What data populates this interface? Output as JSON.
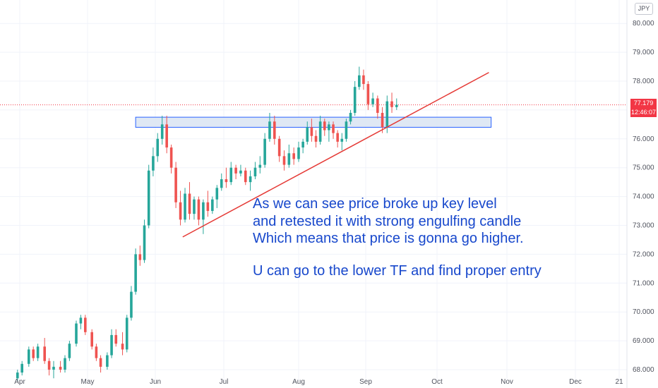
{
  "currency_label": "JPY",
  "price_tag": {
    "price": "77.179",
    "countdown": "12:46:07"
  },
  "annotation": {
    "line1": "As we can see price broke up key level",
    "line2": "and retested it with strong engulfing candle",
    "line3": "Which means that price is gonna go higher.",
    "line4": "U can go to the lower TF and find proper entry"
  },
  "colors": {
    "up": "#26a69a",
    "down": "#ef5350",
    "trendline": "#e53935",
    "zone_fill": "#dbe6f3",
    "zone_stroke": "#2962ff",
    "text": "#1848cc"
  },
  "chart_data": {
    "type": "candlestick",
    "x_ticks": [
      "Apr",
      "May",
      "Jun",
      "Jul",
      "Aug",
      "Sep",
      "Oct",
      "Nov",
      "Dec",
      "21"
    ],
    "y_ticks": [
      "68.000",
      "69.000",
      "70.000",
      "71.000",
      "72.000",
      "73.000",
      "74.000",
      "75.000",
      "76.000",
      "77.000",
      "78.000",
      "79.000",
      "80.000"
    ],
    "ylim": [
      67.9,
      80.3
    ],
    "zone": {
      "low": 76.4,
      "high": 76.75,
      "start": "2020-05-23",
      "end": "2020-10-25"
    },
    "trendline": {
      "start": [
        "2020-06-13",
        72.6
      ],
      "end": [
        "2020-10-24",
        78.3
      ]
    },
    "current_price_line": 77.179,
    "candles": [
      [
        "2020-03-31",
        67.7,
        68.0,
        67.6,
        67.9
      ],
      [
        "2020-04-02",
        67.9,
        68.3,
        67.8,
        68.2
      ],
      [
        "2020-04-05",
        68.2,
        68.8,
        68.1,
        68.7
      ],
      [
        "2020-04-07",
        68.7,
        68.8,
        68.3,
        68.4
      ],
      [
        "2020-04-09",
        68.4,
        68.9,
        68.3,
        68.8
      ],
      [
        "2020-04-12",
        68.8,
        69.1,
        68.2,
        68.3
      ],
      [
        "2020-04-14",
        68.3,
        68.4,
        67.8,
        68.0
      ],
      [
        "2020-04-16",
        68.0,
        68.3,
        67.7,
        68.1
      ],
      [
        "2020-04-19",
        68.1,
        68.3,
        67.9,
        68.0
      ],
      [
        "2020-04-21",
        68.0,
        68.5,
        67.9,
        68.4
      ],
      [
        "2020-04-23",
        68.4,
        69.0,
        68.3,
        68.9
      ],
      [
        "2020-04-26",
        68.9,
        69.7,
        68.8,
        69.6
      ],
      [
        "2020-04-28",
        69.6,
        69.9,
        69.4,
        69.8
      ],
      [
        "2020-04-30",
        69.8,
        69.9,
        69.2,
        69.3
      ],
      [
        "2020-05-03",
        69.3,
        69.4,
        68.7,
        68.8
      ],
      [
        "2020-05-05",
        68.8,
        68.9,
        68.3,
        68.4
      ],
      [
        "2020-05-07",
        68.4,
        68.5,
        67.9,
        68.1
      ],
      [
        "2020-05-10",
        68.1,
        68.6,
        68.0,
        68.5
      ],
      [
        "2020-05-12",
        68.5,
        69.4,
        68.4,
        69.2
      ],
      [
        "2020-05-14",
        69.2,
        69.4,
        68.8,
        68.9
      ],
      [
        "2020-05-17",
        68.9,
        69.3,
        68.5,
        68.7
      ],
      [
        "2020-05-19",
        68.7,
        69.9,
        68.6,
        69.8
      ],
      [
        "2020-05-21",
        69.8,
        70.9,
        69.7,
        70.7
      ],
      [
        "2020-05-23",
        70.7,
        72.2,
        70.6,
        72.0
      ],
      [
        "2020-05-25",
        72.0,
        72.3,
        71.6,
        71.8
      ],
      [
        "2020-05-27",
        71.8,
        73.2,
        71.7,
        73.0
      ],
      [
        "2020-05-29",
        73.0,
        75.1,
        72.9,
        74.9
      ],
      [
        "2020-05-31",
        74.9,
        75.7,
        74.7,
        75.4
      ],
      [
        "2020-06-02",
        75.4,
        76.2,
        75.2,
        76.0
      ],
      [
        "2020-06-04",
        76.0,
        76.8,
        75.8,
        76.5
      ],
      [
        "2020-06-06",
        76.5,
        76.8,
        75.5,
        75.7
      ],
      [
        "2020-06-08",
        75.7,
        75.8,
        74.8,
        75.0
      ],
      [
        "2020-06-10",
        75.0,
        75.2,
        73.6,
        73.8
      ],
      [
        "2020-06-12",
        73.8,
        74.2,
        73.0,
        73.2
      ],
      [
        "2020-06-14",
        73.2,
        74.3,
        73.1,
        74.1
      ],
      [
        "2020-06-16",
        74.1,
        74.5,
        73.2,
        73.4
      ],
      [
        "2020-06-18",
        73.4,
        74.0,
        73.2,
        73.9
      ],
      [
        "2020-06-20",
        73.9,
        74.0,
        73.0,
        73.2
      ],
      [
        "2020-06-22",
        73.2,
        73.9,
        72.7,
        73.8
      ],
      [
        "2020-06-24",
        73.8,
        74.2,
        73.3,
        73.5
      ],
      [
        "2020-06-26",
        73.5,
        74.0,
        73.4,
        73.9
      ],
      [
        "2020-06-28",
        73.9,
        74.4,
        73.6,
        74.3
      ],
      [
        "2020-06-30",
        74.3,
        74.8,
        74.2,
        74.6
      ],
      [
        "2020-07-02",
        74.6,
        75.0,
        74.3,
        74.5
      ],
      [
        "2020-07-04",
        74.5,
        75.2,
        74.4,
        75.0
      ],
      [
        "2020-07-06",
        75.0,
        75.1,
        74.6,
        74.8
      ],
      [
        "2020-07-08",
        74.8,
        75.1,
        74.7,
        74.9
      ],
      [
        "2020-07-10",
        74.9,
        75.0,
        74.4,
        74.5
      ],
      [
        "2020-07-12",
        74.5,
        74.9,
        74.2,
        74.7
      ],
      [
        "2020-07-14",
        74.7,
        75.2,
        74.6,
        75.0
      ],
      [
        "2020-07-16",
        75.0,
        75.4,
        74.8,
        75.1
      ],
      [
        "2020-07-18",
        75.1,
        76.2,
        75.0,
        76.0
      ],
      [
        "2020-07-20",
        76.0,
        76.9,
        75.9,
        76.6
      ],
      [
        "2020-07-22",
        76.6,
        76.8,
        75.8,
        76.0
      ],
      [
        "2020-07-24",
        76.0,
        76.1,
        75.2,
        75.4
      ],
      [
        "2020-07-26",
        75.4,
        75.6,
        74.9,
        75.1
      ],
      [
        "2020-07-28",
        75.1,
        75.8,
        75.0,
        75.5
      ],
      [
        "2020-07-30",
        75.5,
        75.7,
        75.1,
        75.3
      ],
      [
        "2020-08-01",
        75.3,
        75.9,
        75.2,
        75.7
      ],
      [
        "2020-08-03",
        75.7,
        76.0,
        75.5,
        75.9
      ],
      [
        "2020-08-05",
        75.9,
        76.6,
        75.8,
        76.4
      ],
      [
        "2020-08-07",
        76.4,
        76.7,
        75.9,
        76.1
      ],
      [
        "2020-08-09",
        76.1,
        76.3,
        75.7,
        75.9
      ],
      [
        "2020-08-11",
        75.9,
        76.8,
        75.8,
        76.6
      ],
      [
        "2020-08-13",
        76.6,
        76.7,
        76.1,
        76.3
      ],
      [
        "2020-08-15",
        76.3,
        76.6,
        75.9,
        76.5
      ],
      [
        "2020-08-17",
        76.5,
        76.6,
        76.0,
        76.2
      ],
      [
        "2020-08-19",
        76.2,
        76.3,
        75.7,
        75.9
      ],
      [
        "2020-08-21",
        75.9,
        76.2,
        75.6,
        76.0
      ],
      [
        "2020-08-23",
        76.0,
        76.7,
        75.9,
        76.6
      ],
      [
        "2020-08-25",
        76.6,
        77.0,
        76.5,
        76.9
      ],
      [
        "2020-08-27",
        76.9,
        78.0,
        76.8,
        77.8
      ],
      [
        "2020-08-29",
        77.8,
        78.5,
        77.7,
        78.2
      ],
      [
        "2020-08-31",
        78.2,
        78.4,
        77.7,
        77.9
      ],
      [
        "2020-09-02",
        77.9,
        78.0,
        77.0,
        77.2
      ],
      [
        "2020-09-04",
        77.2,
        77.6,
        77.1,
        77.4
      ],
      [
        "2020-09-06",
        77.4,
        77.5,
        76.7,
        76.9
      ],
      [
        "2020-09-08",
        76.9,
        77.1,
        76.2,
        76.4
      ],
      [
        "2020-09-10",
        76.4,
        77.5,
        76.2,
        77.3
      ],
      [
        "2020-09-12",
        77.3,
        77.6,
        76.9,
        77.1
      ],
      [
        "2020-09-14",
        77.1,
        77.4,
        77.0,
        77.18
      ]
    ]
  }
}
